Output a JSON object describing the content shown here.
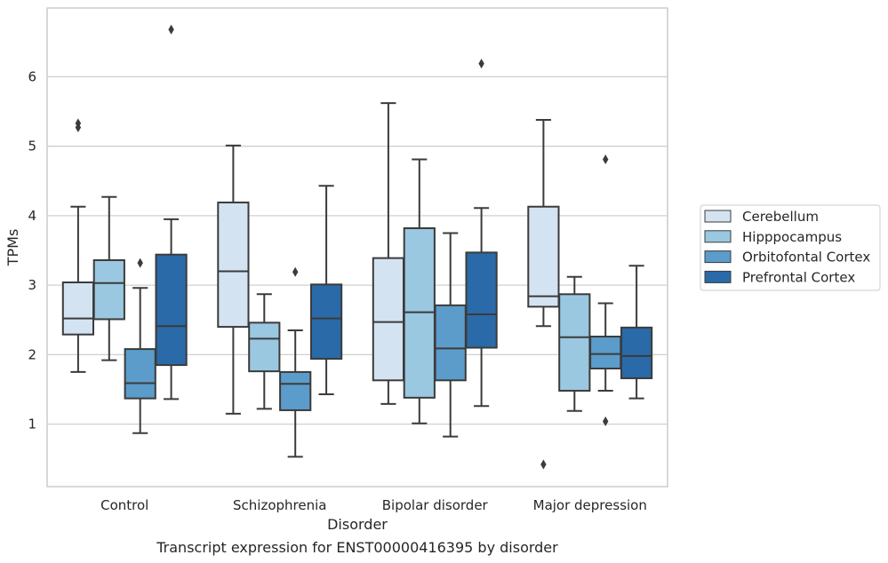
{
  "chart_data": {
    "type": "box",
    "xlabel": "Disorder",
    "ylabel": "TPMs",
    "caption": "Transcript expression for ENST00000416395 by disorder",
    "categories": [
      "Control",
      "Schizophrenia",
      "Bipolar disorder",
      "Major depression"
    ],
    "ylim": [
      0.1,
      6.99
    ],
    "yticks": [
      1,
      2,
      3,
      4,
      5,
      6
    ],
    "grid": "horizontal",
    "legend_position": "right",
    "series": [
      {
        "name": "Cerebellum",
        "color": "#d4e3f2",
        "boxes": [
          {
            "whislo": 1.75,
            "q1": 2.29,
            "med": 2.52,
            "q3": 3.04,
            "whishi": 4.13,
            "fliers": [
              5.27,
              5.33
            ]
          },
          {
            "whislo": 1.15,
            "q1": 2.4,
            "med": 3.2,
            "q3": 4.19,
            "whishi": 5.01,
            "fliers": []
          },
          {
            "whislo": 1.29,
            "q1": 1.63,
            "med": 2.47,
            "q3": 3.39,
            "whishi": 5.62,
            "fliers": []
          },
          {
            "whislo": 2.41,
            "q1": 2.69,
            "med": 2.84,
            "q3": 4.13,
            "whishi": 5.38,
            "fliers": [
              0.42
            ]
          }
        ]
      },
      {
        "name": "Hipppocampus",
        "color": "#9ac8e0",
        "boxes": [
          {
            "whislo": 1.92,
            "q1": 2.51,
            "med": 3.03,
            "q3": 3.36,
            "whishi": 4.27,
            "fliers": []
          },
          {
            "whislo": 1.22,
            "q1": 1.76,
            "med": 2.23,
            "q3": 2.46,
            "whishi": 2.87,
            "fliers": []
          },
          {
            "whislo": 1.01,
            "q1": 1.38,
            "med": 2.61,
            "q3": 3.82,
            "whishi": 4.81,
            "fliers": []
          },
          {
            "whislo": 1.19,
            "q1": 1.48,
            "med": 2.25,
            "q3": 2.87,
            "whishi": 3.12,
            "fliers": []
          }
        ]
      },
      {
        "name": "Orbitofontal Cortex",
        "color": "#5b9ccb",
        "boxes": [
          {
            "whislo": 0.87,
            "q1": 1.37,
            "med": 1.59,
            "q3": 2.08,
            "whishi": 2.96,
            "fliers": [
              3.32
            ]
          },
          {
            "whislo": 0.53,
            "q1": 1.2,
            "med": 1.58,
            "q3": 1.75,
            "whishi": 2.35,
            "fliers": [
              3.19
            ]
          },
          {
            "whislo": 0.82,
            "q1": 1.63,
            "med": 2.09,
            "q3": 2.71,
            "whishi": 3.75,
            "fliers": []
          },
          {
            "whislo": 1.48,
            "q1": 1.8,
            "med": 2.01,
            "q3": 2.26,
            "whishi": 2.74,
            "fliers": [
              1.04,
              4.81
            ]
          }
        ]
      },
      {
        "name": "Prefrontal Cortex",
        "color": "#2a6aa8",
        "boxes": [
          {
            "whislo": 1.36,
            "q1": 1.85,
            "med": 2.41,
            "q3": 3.44,
            "whishi": 3.95,
            "fliers": [
              6.68
            ]
          },
          {
            "whislo": 1.43,
            "q1": 1.94,
            "med": 2.52,
            "q3": 3.01,
            "whishi": 4.43,
            "fliers": []
          },
          {
            "whislo": 1.26,
            "q1": 2.1,
            "med": 2.58,
            "q3": 3.47,
            "whishi": 4.11,
            "fliers": [
              6.19
            ]
          },
          {
            "whislo": 1.37,
            "q1": 1.66,
            "med": 1.98,
            "q3": 2.39,
            "whishi": 3.28,
            "fliers": []
          }
        ]
      }
    ]
  }
}
